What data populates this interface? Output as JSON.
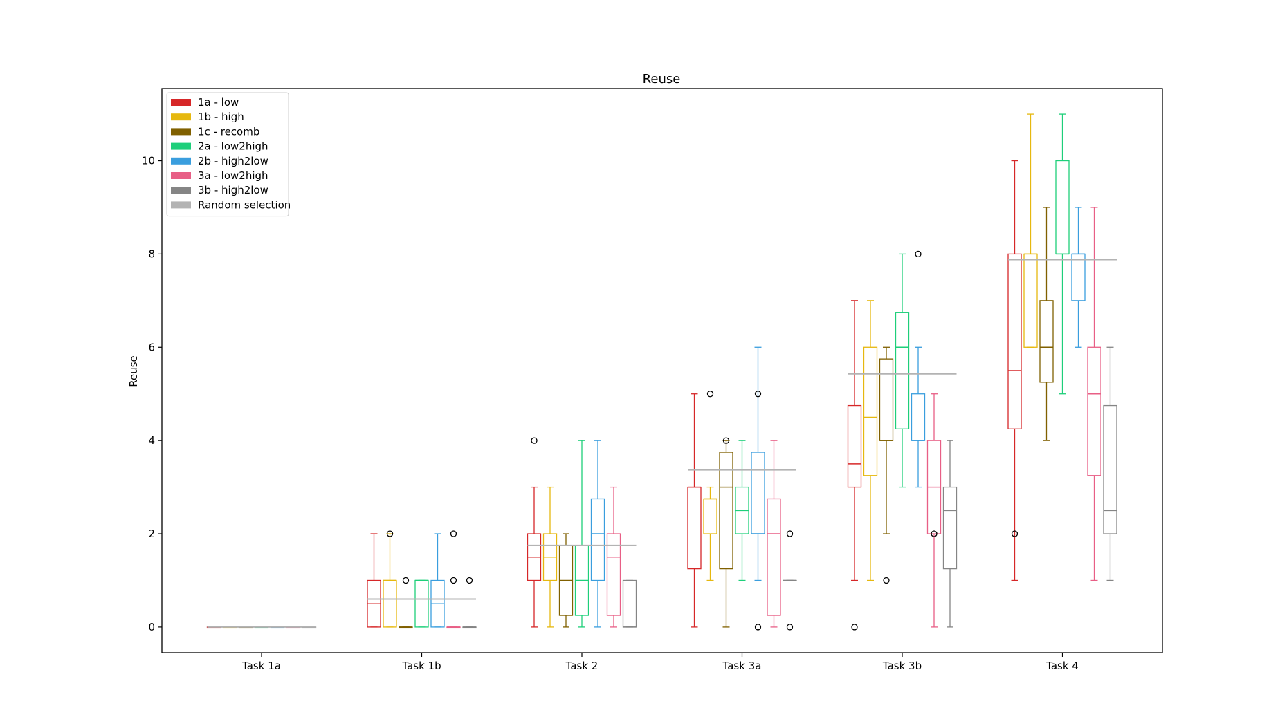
{
  "chart_data": {
    "type": "box",
    "title": "Reuse",
    "xlabel": "",
    "ylabel": "Reuse",
    "ylim": [
      -0.55,
      11.55
    ],
    "yticks": [
      0,
      2,
      4,
      6,
      8,
      10
    ],
    "categories": [
      "Task 1a",
      "Task 1b",
      "Task 2",
      "Task 3a",
      "Task 3b",
      "Task 4"
    ],
    "legend_position": "upper-left",
    "series": [
      {
        "name": "1a - low",
        "color": "#d62728",
        "boxes": [
          {
            "whislo": 0,
            "q1": 0,
            "med": 0,
            "q3": 0,
            "whishi": 0,
            "fliers": []
          },
          {
            "whislo": 0,
            "q1": 0,
            "med": 0.5,
            "q3": 1,
            "whishi": 2,
            "fliers": []
          },
          {
            "whislo": 0,
            "q1": 1,
            "med": 1.5,
            "q3": 2,
            "whishi": 3,
            "fliers": [
              4
            ]
          },
          {
            "whislo": 0,
            "q1": 1.25,
            "med": 3,
            "q3": 3,
            "whishi": 5,
            "fliers": []
          },
          {
            "whislo": 1,
            "q1": 3,
            "med": 3.5,
            "q3": 4.75,
            "whishi": 7,
            "fliers": [
              0
            ]
          },
          {
            "whislo": 1,
            "q1": 4.25,
            "med": 5.5,
            "q3": 8,
            "whishi": 10,
            "fliers": [
              2
            ]
          }
        ]
      },
      {
        "name": "1b - high",
        "color": "#e6b80f",
        "boxes": [
          {
            "whislo": 0,
            "q1": 0,
            "med": 0,
            "q3": 0,
            "whishi": 0,
            "fliers": []
          },
          {
            "whislo": 0,
            "q1": 0,
            "med": 1,
            "q3": 1,
            "whishi": 2,
            "fliers": [
              2
            ]
          },
          {
            "whislo": 0,
            "q1": 1,
            "med": 1.5,
            "q3": 2,
            "whishi": 3,
            "fliers": []
          },
          {
            "whislo": 1,
            "q1": 2,
            "med": 2.75,
            "q3": 2.75,
            "whishi": 3,
            "fliers": [
              5
            ]
          },
          {
            "whislo": 1,
            "q1": 3.25,
            "med": 4.5,
            "q3": 6,
            "whishi": 7,
            "fliers": []
          },
          {
            "whislo": 6,
            "q1": 6,
            "med": 8,
            "q3": 8,
            "whishi": 11,
            "fliers": []
          }
        ]
      },
      {
        "name": "1c - recomb",
        "color": "#806000",
        "boxes": [
          {
            "whislo": 0,
            "q1": 0,
            "med": 0,
            "q3": 0,
            "whishi": 0,
            "fliers": []
          },
          {
            "whislo": 0,
            "q1": 0,
            "med": 0,
            "q3": 0,
            "whishi": 0,
            "fliers": [
              1
            ]
          },
          {
            "whislo": 0,
            "q1": 0.25,
            "med": 1,
            "q3": 1.75,
            "whishi": 2,
            "fliers": []
          },
          {
            "whislo": 0,
            "q1": 1.25,
            "med": 3,
            "q3": 3.75,
            "whishi": 4,
            "fliers": [
              4
            ]
          },
          {
            "whislo": 2,
            "q1": 4,
            "med": 4,
            "q3": 5.75,
            "whishi": 6,
            "fliers": [
              1
            ]
          },
          {
            "whislo": 4,
            "q1": 5.25,
            "med": 6,
            "q3": 7,
            "whishi": 9,
            "fliers": []
          }
        ]
      },
      {
        "name": "2a - low2high",
        "color": "#1ecf7a",
        "boxes": [
          {
            "whislo": 0,
            "q1": 0,
            "med": 0,
            "q3": 0,
            "whishi": 0,
            "fliers": []
          },
          {
            "whislo": 0,
            "q1": 0,
            "med": 1,
            "q3": 1,
            "whishi": 1,
            "fliers": []
          },
          {
            "whislo": 0,
            "q1": 0.25,
            "med": 1,
            "q3": 1.75,
            "whishi": 4,
            "fliers": []
          },
          {
            "whislo": 1,
            "q1": 2,
            "med": 2.5,
            "q3": 3,
            "whishi": 4,
            "fliers": []
          },
          {
            "whislo": 3,
            "q1": 4.25,
            "med": 6,
            "q3": 6.75,
            "whishi": 8,
            "fliers": []
          },
          {
            "whislo": 5,
            "q1": 8,
            "med": 8,
            "q3": 10,
            "whishi": 11,
            "fliers": []
          }
        ]
      },
      {
        "name": "2b - high2low",
        "color": "#3a9ede",
        "boxes": [
          {
            "whislo": 0,
            "q1": 0,
            "med": 0,
            "q3": 0,
            "whishi": 0,
            "fliers": []
          },
          {
            "whislo": 0,
            "q1": 0,
            "med": 0.5,
            "q3": 1,
            "whishi": 2,
            "fliers": []
          },
          {
            "whislo": 0,
            "q1": 1,
            "med": 2,
            "q3": 2.75,
            "whishi": 4,
            "fliers": []
          },
          {
            "whislo": 1,
            "q1": 2,
            "med": 2,
            "q3": 3.75,
            "whishi": 6,
            "fliers": [
              0,
              5
            ]
          },
          {
            "whislo": 3,
            "q1": 4,
            "med": 4,
            "q3": 5,
            "whishi": 6,
            "fliers": [
              8
            ]
          },
          {
            "whislo": 6,
            "q1": 7,
            "med": 8,
            "q3": 8,
            "whishi": 9,
            "fliers": []
          }
        ]
      },
      {
        "name": "3a - low2high",
        "color": "#e85f86",
        "boxes": [
          {
            "whislo": 0,
            "q1": 0,
            "med": 0,
            "q3": 0,
            "whishi": 0,
            "fliers": []
          },
          {
            "whislo": 0,
            "q1": 0,
            "med": 0,
            "q3": 0,
            "whishi": 0,
            "fliers": [
              1,
              2
            ]
          },
          {
            "whislo": 0,
            "q1": 0.25,
            "med": 1.5,
            "q3": 2,
            "whishi": 3,
            "fliers": []
          },
          {
            "whislo": 0,
            "q1": 0.25,
            "med": 2,
            "q3": 2.75,
            "whishi": 4,
            "fliers": []
          },
          {
            "whislo": 0,
            "q1": 2,
            "med": 3,
            "q3": 4,
            "whishi": 5,
            "fliers": [
              2
            ]
          },
          {
            "whislo": 1,
            "q1": 3.25,
            "med": 5,
            "q3": 6,
            "whishi": 9,
            "fliers": []
          }
        ]
      },
      {
        "name": "3b - high2low",
        "color": "#858585",
        "boxes": [
          {
            "whislo": 0,
            "q1": 0,
            "med": 0,
            "q3": 0,
            "whishi": 0,
            "fliers": []
          },
          {
            "whislo": 0,
            "q1": 0,
            "med": 0,
            "q3": 0,
            "whishi": 0,
            "fliers": [
              1
            ]
          },
          {
            "whislo": 0,
            "q1": 0,
            "med": 0,
            "q3": 1,
            "whishi": 1,
            "fliers": []
          },
          {
            "whislo": 1,
            "q1": 1,
            "med": 1,
            "q3": 1,
            "whishi": 1,
            "fliers": [
              0,
              2
            ]
          },
          {
            "whislo": 0,
            "q1": 1.25,
            "med": 2.5,
            "q3": 3,
            "whishi": 4,
            "fliers": []
          },
          {
            "whislo": 1,
            "q1": 2,
            "med": 2.5,
            "q3": 4.75,
            "whishi": 6,
            "fliers": []
          }
        ]
      }
    ],
    "reference": {
      "name": "Random selection",
      "color": "#b3b3b3",
      "values": [
        0,
        0.6,
        1.75,
        3.37,
        5.43,
        7.88
      ]
    }
  }
}
